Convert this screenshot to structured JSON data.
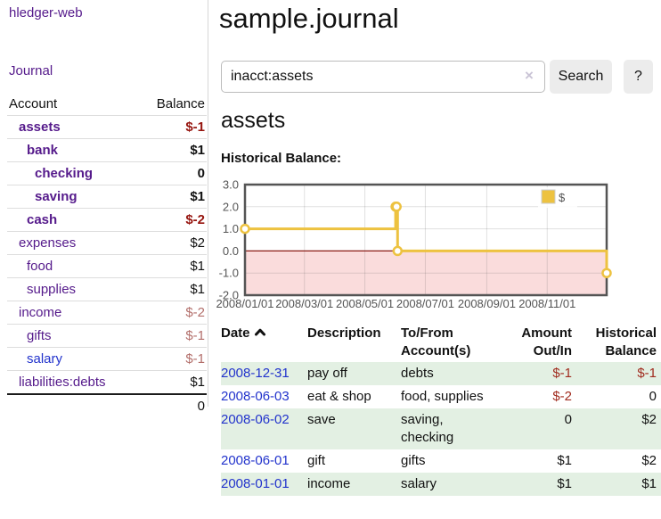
{
  "sidebar": {
    "app_title": "hledger-web",
    "nav": {
      "journal": "Journal"
    },
    "accounts": {
      "col_account": "Account",
      "col_balance": "Balance",
      "rows": [
        {
          "name": "assets",
          "balance": "$-1",
          "depth": 1,
          "current": true,
          "negative": true,
          "visited": true
        },
        {
          "name": "bank",
          "balance": "$1",
          "depth": 2,
          "current": true,
          "negative": false,
          "visited": true
        },
        {
          "name": "checking",
          "balance": "0",
          "depth": 3,
          "current": true,
          "negative": false,
          "visited": true
        },
        {
          "name": "saving",
          "balance": "$1",
          "depth": 3,
          "current": true,
          "negative": false,
          "visited": true
        },
        {
          "name": "cash",
          "balance": "$-2",
          "depth": 2,
          "current": true,
          "negative": true,
          "visited": true
        },
        {
          "name": "expenses",
          "balance": "$2",
          "depth": 1,
          "current": false,
          "negative": false,
          "visited": true
        },
        {
          "name": "food",
          "balance": "$1",
          "depth": 2,
          "current": false,
          "negative": false,
          "visited": true
        },
        {
          "name": "supplies",
          "balance": "$1",
          "depth": 2,
          "current": false,
          "negative": false,
          "visited": true
        },
        {
          "name": "income",
          "balance": "$-2",
          "depth": 1,
          "current": false,
          "negative": true,
          "visited": true
        },
        {
          "name": "gifts",
          "balance": "$-1",
          "depth": 2,
          "current": false,
          "negative": true,
          "visited": true
        },
        {
          "name": "salary",
          "balance": "$-1",
          "depth": 2,
          "current": false,
          "negative": true,
          "visited": false
        },
        {
          "name": "liabilities:debts",
          "balance": "$1",
          "depth": 1,
          "current": false,
          "negative": false,
          "visited": true
        }
      ],
      "total": "0"
    }
  },
  "header": {
    "title": "sample.journal"
  },
  "search": {
    "value": "inacct:assets",
    "clear_icon": "×",
    "search_button": "Search",
    "help_button": "?"
  },
  "account_page": {
    "heading": "assets",
    "chart_title": "Historical Balance:"
  },
  "chart_data": {
    "type": "line",
    "title": "Historical Balance",
    "step": true,
    "legend_label": "$",
    "legend_position": "top-right",
    "series": [
      {
        "name": "$",
        "color": "#EDC240",
        "points": [
          {
            "date": "2008-01-01",
            "value": 1
          },
          {
            "date": "2008-06-01",
            "value": 2
          },
          {
            "date": "2008-06-02",
            "value": 2
          },
          {
            "date": "2008-06-03",
            "value": 0
          },
          {
            "date": "2008-12-31",
            "value": -1
          }
        ]
      }
    ],
    "ylim": [
      -2,
      3
    ],
    "yticks": [
      "3.0",
      "2.0",
      "1.0",
      "0.0",
      "-1.0",
      "-2.0"
    ],
    "xticks": [
      "2008/01/01",
      "2008/03/01",
      "2008/05/01",
      "2008/07/01",
      "2008/09/01",
      "2008/11/01"
    ],
    "x_range": [
      "2008-01-01",
      "2008-12-31"
    ],
    "grid": true,
    "border_color": "#545454",
    "grid_color": "rgba(84,84,84,0.18)",
    "zero_line_color": "#8b1a14",
    "negative_region_color": "#fadcdc",
    "point_fill": "#ffffff"
  },
  "register": {
    "columns": {
      "date": "Date",
      "description": "Description",
      "tofrom": "To/From Account(s)",
      "amount": "Amount Out/In",
      "balance": "Historical Balance"
    },
    "rows": [
      {
        "date": "2008-12-31",
        "description": "pay off",
        "accounts": "debts",
        "amount": "$-1",
        "balance": "$-1",
        "amount_neg": true,
        "balance_neg": true,
        "shaded": true
      },
      {
        "date": "2008-06-03",
        "description": "eat & shop",
        "accounts": "food, supplies",
        "amount": "$-2",
        "balance": "0",
        "amount_neg": true,
        "balance_neg": false,
        "shaded": false
      },
      {
        "date": "2008-06-02",
        "description": "save",
        "accounts": "saving, checking",
        "amount": "0",
        "balance": "$2",
        "amount_neg": false,
        "balance_neg": false,
        "shaded": true
      },
      {
        "date": "2008-06-01",
        "description": "gift",
        "accounts": "gifts",
        "amount": "$1",
        "balance": "$2",
        "amount_neg": false,
        "balance_neg": false,
        "shaded": false
      },
      {
        "date": "2008-01-01",
        "description": "income",
        "accounts": "salary",
        "amount": "$1",
        "balance": "$1",
        "amount_neg": false,
        "balance_neg": false,
        "shaded": true
      }
    ]
  }
}
